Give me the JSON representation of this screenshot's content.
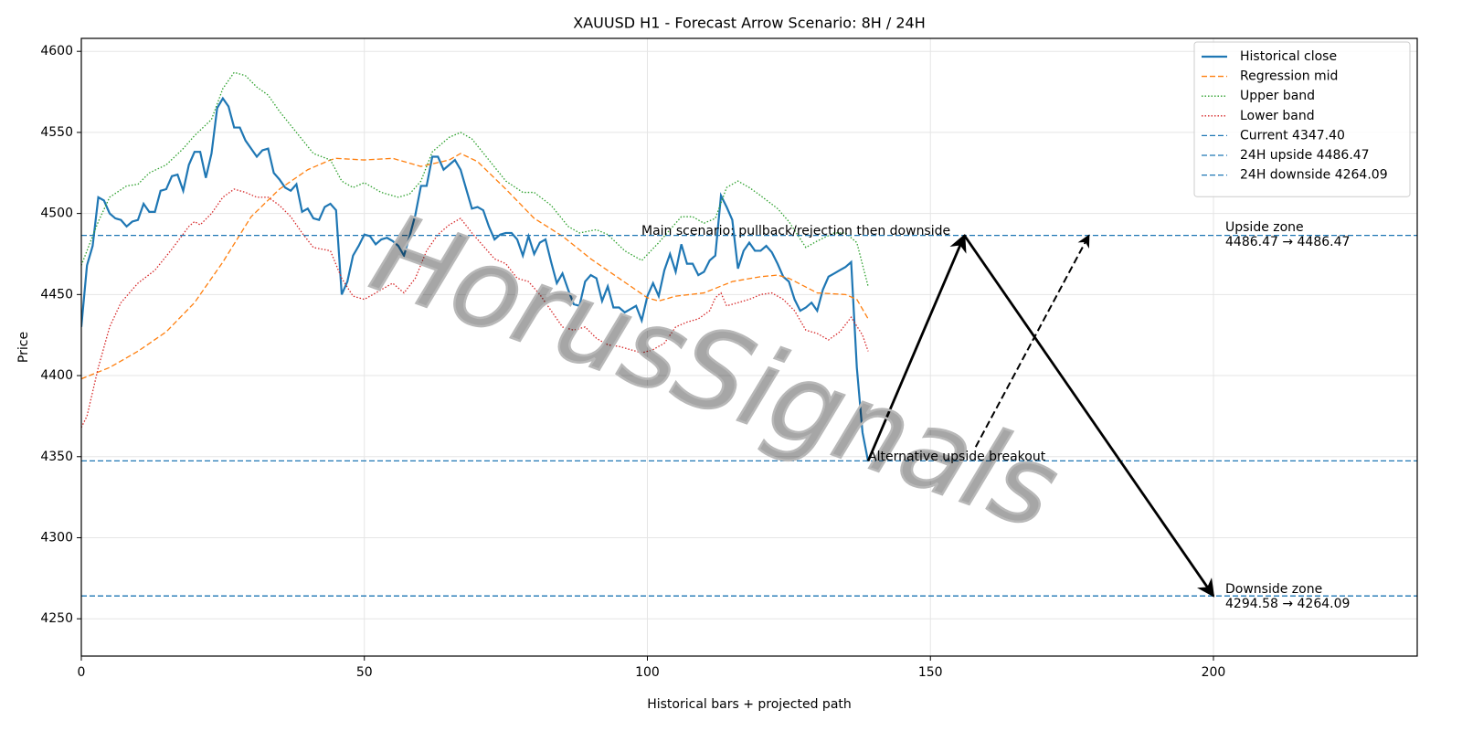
{
  "chart_data": {
    "type": "line",
    "title": "XAUUSD H1 - Forecast Arrow Scenario: 8H / 24H",
    "x_label": "Historical bars + projected path",
    "y_label": "Price",
    "xlim": [
      0,
      236
    ],
    "ylim": [
      4227,
      4608
    ],
    "xticks": [
      0,
      50,
      100,
      150,
      200
    ],
    "yticks": [
      4250,
      4300,
      4350,
      4400,
      4450,
      4500,
      4550,
      4600
    ],
    "grid": true,
    "legend": "upper right",
    "watermark": "HorusSignals",
    "series": [
      {
        "name": "Historical close",
        "color": "#1f77b4",
        "style": "solid",
        "values": [
          4430,
          4468,
          4480,
          4510,
          4508,
          4500,
          4497,
          4496,
          4492,
          4495,
          4496,
          4506,
          4501,
          4501,
          4514,
          4515,
          4523,
          4524,
          4514,
          4530,
          4538,
          4538,
          4522,
          4537,
          4565,
          4571,
          4566,
          4553,
          4553,
          4545,
          4540,
          4535,
          4539,
          4540,
          4525,
          4521,
          4516,
          4514,
          4518,
          4501,
          4503,
          4497,
          4496,
          4504,
          4506,
          4502,
          4450,
          4458,
          4474,
          4480,
          4487,
          4486,
          4481,
          4484,
          4485,
          4483,
          4480,
          4474,
          4486,
          4499,
          4517,
          4517,
          4535,
          4535,
          4527,
          4530,
          4533,
          4527,
          4515,
          4503,
          4504,
          4502,
          4492,
          4484,
          4487,
          4488,
          4488,
          4484,
          4474,
          4486,
          4475,
          4482,
          4484,
          4470,
          4457,
          4463,
          4453,
          4444,
          4443,
          4458,
          4462,
          4460,
          4446,
          4455,
          4442,
          4442,
          4439,
          4441,
          4443,
          4434,
          4449,
          4457,
          4449,
          4465,
          4475,
          4464,
          4481,
          4469,
          4469,
          4462,
          4464,
          4471,
          4474,
          4511,
          4504,
          4496,
          4466,
          4477,
          4482,
          4477,
          4477,
          4480,
          4476,
          4469,
          4461,
          4458,
          4447,
          4440,
          4442,
          4445,
          4440,
          4453,
          4461,
          4463,
          4465,
          4467,
          4470,
          4405,
          4365,
          4347
        ]
      },
      {
        "name": "Regression mid",
        "color": "#ff7f0e",
        "style": "dashed",
        "x": [
          0,
          5,
          10,
          15,
          20,
          25,
          30,
          35,
          40,
          44,
          45,
          50,
          55,
          60,
          65,
          67,
          70,
          75,
          80,
          85,
          90,
          95,
          100,
          102,
          105,
          110,
          115,
          120,
          123,
          125,
          130,
          135,
          137,
          139
        ],
        "values": [
          4398,
          4405,
          4415,
          4427,
          4445,
          4470,
          4498,
          4515,
          4527,
          4533,
          4534,
          4533,
          4534,
          4529,
          4533,
          4537,
          4532,
          4515,
          4497,
          4486,
          4472,
          4460,
          4448,
          4446,
          4449,
          4451,
          4458,
          4461,
          4462,
          4460,
          4451,
          4450,
          4447,
          4435
        ]
      },
      {
        "name": "Upper band",
        "color": "#2ca02c",
        "style": "dotted",
        "x": [
          0,
          3,
          5,
          8,
          10,
          12,
          15,
          18,
          20,
          23,
          25,
          27,
          29,
          31,
          33,
          35,
          38,
          41,
          44,
          46,
          48,
          50,
          53,
          56,
          58,
          60,
          62,
          65,
          67,
          69,
          72,
          75,
          78,
          80,
          83,
          86,
          88,
          91,
          93,
          96,
          99,
          102,
          104,
          106,
          108,
          110,
          112,
          114,
          116,
          118,
          120,
          123,
          125,
          128,
          130,
          133,
          135,
          137,
          139
        ],
        "values": [
          4468,
          4495,
          4510,
          4517,
          4518,
          4525,
          4530,
          4540,
          4548,
          4558,
          4577,
          4587,
          4585,
          4578,
          4573,
          4563,
          4550,
          4537,
          4533,
          4520,
          4516,
          4519,
          4513,
          4510,
          4512,
          4520,
          4538,
          4547,
          4550,
          4546,
          4533,
          4520,
          4513,
          4513,
          4505,
          4492,
          4488,
          4490,
          4487,
          4477,
          4471,
          4482,
          4490,
          4498,
          4498,
          4494,
          4497,
          4516,
          4520,
          4516,
          4511,
          4503,
          4495,
          4479,
          4483,
          4488,
          4488,
          4482,
          4455
        ]
      },
      {
        "name": "Lower band",
        "color": "#d62728",
        "style": "dotted",
        "x": [
          0,
          1,
          3,
          5,
          7,
          10,
          13,
          16,
          19,
          20,
          21,
          23,
          25,
          27,
          29,
          31,
          33,
          35,
          37,
          39,
          41,
          44,
          46,
          48,
          50,
          53,
          55,
          57,
          59,
          61,
          63,
          65,
          67,
          69,
          71,
          73,
          75,
          77,
          79,
          81,
          83,
          85,
          87,
          89,
          91,
          93,
          95,
          97,
          99,
          101,
          103,
          105,
          107,
          109,
          111,
          112,
          113,
          114,
          116,
          118,
          120,
          122,
          124,
          126,
          128,
          130,
          132,
          134,
          136,
          138,
          139
        ],
        "values": [
          4368,
          4375,
          4405,
          4430,
          4445,
          4457,
          4465,
          4478,
          4492,
          4495,
          4493,
          4500,
          4510,
          4515,
          4513,
          4510,
          4510,
          4505,
          4498,
          4488,
          4479,
          4477,
          4460,
          4449,
          4447,
          4453,
          4457,
          4451,
          4460,
          4477,
          4487,
          4493,
          4497,
          4488,
          4480,
          4472,
          4469,
          4460,
          4458,
          4450,
          4440,
          4430,
          4428,
          4430,
          4423,
          4419,
          4418,
          4416,
          4414,
          4416,
          4420,
          4430,
          4433,
          4435,
          4440,
          4448,
          4451,
          4443,
          4445,
          4447,
          4450,
          4451,
          4447,
          4440,
          4428,
          4426,
          4422,
          4427,
          4436,
          4425,
          4415
        ]
      }
    ],
    "hlines": [
      {
        "name": "Current 4347.40",
        "color": "#1f77b4",
        "value": 4347.4
      },
      {
        "name": "24H upside 4486.47",
        "color": "#1f77b4",
        "value": 4486.47
      },
      {
        "name": "24H downside 4264.09",
        "color": "#1f77b4",
        "value": 4264.09
      }
    ],
    "arrows": [
      {
        "style": "solid",
        "x": [
          139,
          156
        ],
        "y": [
          4347.4,
          4486.47
        ]
      },
      {
        "style": "solid",
        "x": [
          156,
          200
        ],
        "y": [
          4486.47,
          4264.09
        ]
      },
      {
        "style": "dashed",
        "x": [
          158,
          178
        ],
        "y": [
          4356,
          4486.47
        ]
      }
    ],
    "annotations": [
      "Main scenario: pullback/rejection then downside",
      "Alternative upside breakout"
    ],
    "zones": [
      {
        "title": "Upside zone",
        "range": "4486.47 → 4486.47"
      },
      {
        "title": "Downside zone",
        "range": "4294.58 → 4264.09"
      }
    ]
  }
}
